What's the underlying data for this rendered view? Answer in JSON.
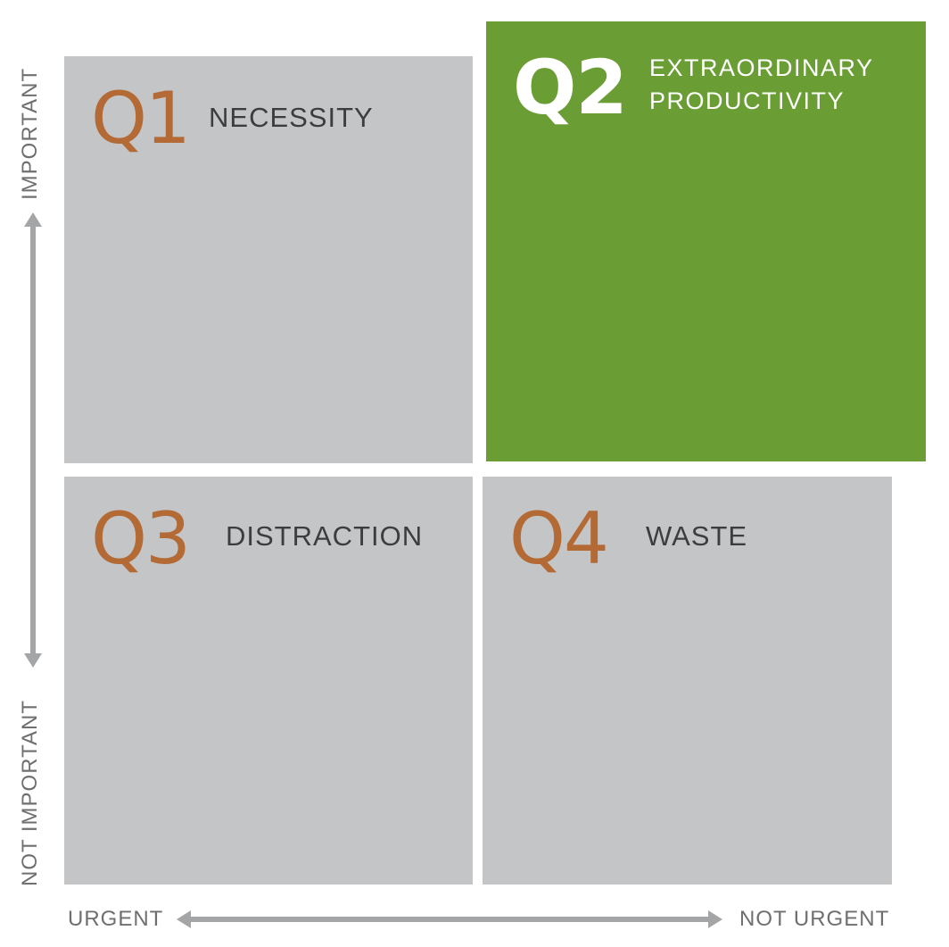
{
  "colors": {
    "quadrant_gray": "#c4c5c7",
    "highlight_green": "#6a9e35",
    "quadrant_number_orange": "#b36a35",
    "title_text": "#3d3d3d",
    "axis_text": "#6f6f6f",
    "arrow": "#a4a5a7"
  },
  "axes": {
    "vertical": {
      "top_label": "IMPORTANT",
      "bottom_label": "NOT IMPORTANT",
      "arrow": "double-headed"
    },
    "horizontal": {
      "left_label": "URGENT",
      "right_label": "NOT URGENT",
      "arrow": "double-headed"
    }
  },
  "quadrants": [
    {
      "id": "Q1",
      "number": "Q1",
      "name_lines": [
        "NECESSITY"
      ],
      "highlighted": false
    },
    {
      "id": "Q2",
      "number": "Q2",
      "name_lines": [
        "EXTRAORDINARY",
        "PRODUCTIVITY"
      ],
      "highlighted": true
    },
    {
      "id": "Q3",
      "number": "Q3",
      "name_lines": [
        "DISTRACTION"
      ],
      "highlighted": false
    },
    {
      "id": "Q4",
      "number": "Q4",
      "name_lines": [
        "WASTE"
      ],
      "highlighted": false
    }
  ]
}
